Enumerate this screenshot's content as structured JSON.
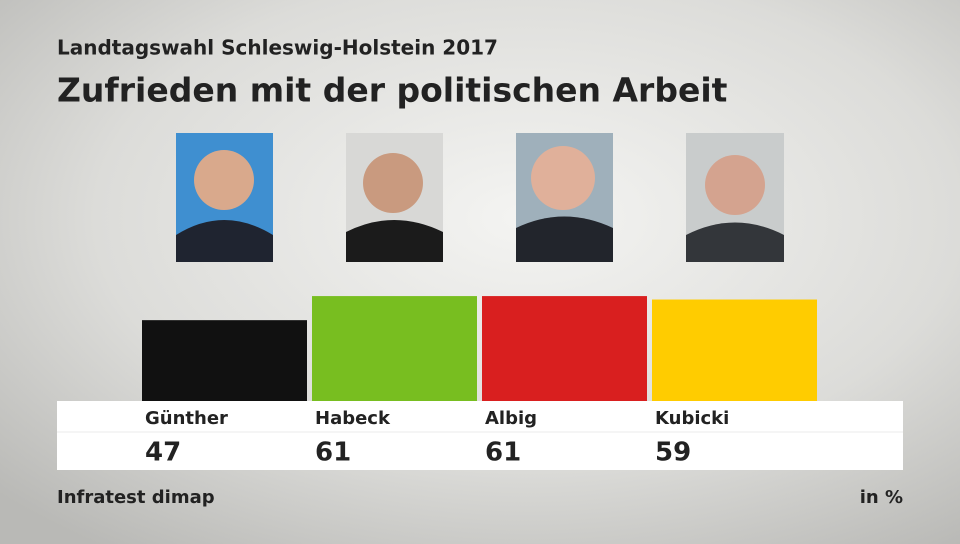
{
  "chart_data": {
    "type": "bar",
    "subtitle": "Landtagswahl Schleswig-Holstein 2017",
    "title": "Zufrieden mit der politischen Arbeit",
    "categories": [
      "Günther",
      "Habeck",
      "Albig",
      "Kubicki"
    ],
    "values": [
      47,
      61,
      61,
      59
    ],
    "colors": [
      "#111111",
      "#78be20",
      "#d91f1f",
      "#ffcc00"
    ],
    "source": "Infratest dimap",
    "unit": "in %"
  }
}
